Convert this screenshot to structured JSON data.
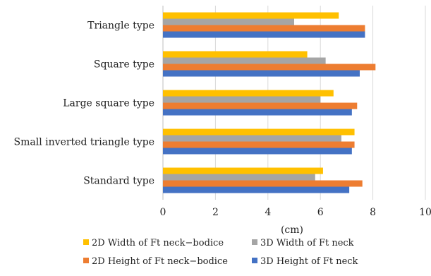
{
  "chart_data": {
    "type": "bar",
    "orientation": "horizontal",
    "title": "",
    "xlabel": "(cm)",
    "ylabel": "",
    "xlim": [
      0,
      10
    ],
    "xticks": [
      0,
      2,
      4,
      6,
      8,
      10
    ],
    "grid": true,
    "legend_position": "bottom",
    "categories": [
      "Triangle type",
      "Square type",
      "Large square type",
      "Small inverted triangle type",
      "Standard type"
    ],
    "series": [
      {
        "name": "2D Width of Ft neck−bodice",
        "color": "#FFC000",
        "values": [
          6.7,
          5.5,
          6.5,
          7.3,
          6.1
        ]
      },
      {
        "name": "3D Width of Ft neck",
        "color": "#A5A5A5",
        "values": [
          5.0,
          6.2,
          6.0,
          6.8,
          5.8
        ]
      },
      {
        "name": "2D Height of Ft neck−bodice",
        "color": "#ED7D31",
        "values": [
          7.7,
          8.1,
          7.4,
          7.3,
          7.6
        ]
      },
      {
        "name": "3D Height of Ft neck",
        "color": "#4472C4",
        "values": [
          7.7,
          7.5,
          7.2,
          7.2,
          7.1
        ]
      }
    ]
  }
}
